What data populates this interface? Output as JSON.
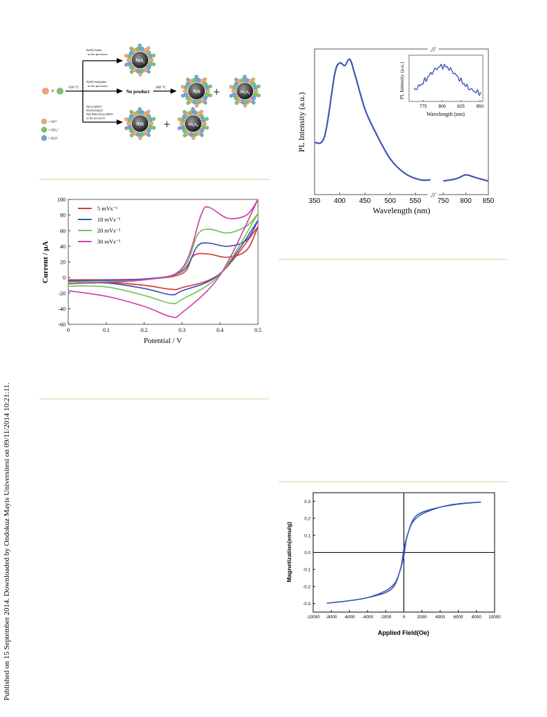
{
  "sidebar": {
    "text": "Published on 15 September 2014. Downloaded by Ondokuz Mayis Universitesi on 09/11/2014 10:21:11."
  },
  "scheme": {
    "reactant_plus": "+",
    "temperature_1": "150 °C",
    "temperature_2": "180 °C",
    "branch_top": [
      "Ni(II)-Salen",
      "as the precursor"
    ],
    "branch_middle": [
      "Ni(II)-Salophen",
      "as the precursor"
    ],
    "branch_bottom": [
      "NiCl2.6H2O",
      "NiSO4.6H2O",
      "Ni(CH3COO)2.4H2O",
      "as the precursor"
    ],
    "no_product": "No product",
    "product_nis2": "NiS₂",
    "product_nis": "NiS",
    "product_ni3s4": "Ni₃S₄",
    "plus": "+",
    "legend": [
      "= Ni²⁺",
      "= SO₄²⁻",
      "= H₂O"
    ],
    "colors": {
      "ni": "#f2a57a",
      "so4": "#7cc46a",
      "h2o": "#6fa6dc"
    }
  },
  "charts": {
    "pl": {
      "type": "line",
      "ylabel": "PL Intensity (a.u.)",
      "xlabel": "Wavelength (nm)",
      "xticks_left": [
        "350",
        "400",
        "450",
        "500",
        "550"
      ],
      "xticks_right": [
        "750",
        "800",
        "850"
      ],
      "axis_break": "//",
      "color": "#3a55b4",
      "inset": {
        "ylabel": "PL Intensity (a.u.)",
        "xlabel": "Wavelength (nm)",
        "xticks": [
          "775",
          "800",
          "825",
          "850"
        ]
      }
    },
    "cv": {
      "type": "line",
      "xlabel": "Potential / V",
      "ylabel": "Current / μA",
      "xticks": [
        "0",
        "0.1",
        "0.2",
        "0.3",
        "0.4",
        "0.5"
      ],
      "yticks": [
        "100",
        "80",
        "60",
        "40",
        "20",
        "0",
        "-20",
        "-40",
        "-60"
      ],
      "legend": [
        {
          "label": "5 mVs⁻¹",
          "color": "#d93a3a"
        },
        {
          "label": "10 mVs⁻¹",
          "color": "#3a55b4"
        },
        {
          "label": "20 mVs⁻¹",
          "color": "#73c455"
        },
        {
          "label": "30 mVs⁻¹",
          "color": "#cc44a8"
        }
      ]
    },
    "mag": {
      "type": "line",
      "xlabel": "Applied Field(Oe)",
      "ylabel": "Magnetization(emu/g)",
      "xticks": [
        "-10000",
        "-8000",
        "-6000",
        "-4000",
        "-2000",
        "0",
        "2000",
        "4000",
        "6000",
        "8000",
        "10000"
      ],
      "yticks": [
        "0.3",
        "0.2",
        "0.1",
        "0.0",
        "-0.1",
        "-0.2",
        "-0.3"
      ],
      "color": "#3a55b4"
    }
  },
  "chart_data": [
    {
      "type": "line",
      "xlabel": "Wavelength (nm)",
      "ylabel": "PL Intensity (a.u.)",
      "x": [
        350,
        370,
        390,
        400,
        410,
        420,
        430,
        450,
        470,
        500,
        530,
        560,
        580,
        750,
        780,
        800,
        820,
        850
      ],
      "y": [
        0.33,
        0.38,
        0.88,
        0.97,
        0.95,
        1.0,
        0.88,
        0.6,
        0.42,
        0.2,
        0.08,
        0.03,
        0.03,
        0.02,
        0.04,
        0.07,
        0.05,
        0.02
      ],
      "xlim": [
        350,
        850
      ]
    },
    {
      "type": "line",
      "xlabel": "Potential / V",
      "ylabel": "Current / μA",
      "xlim": [
        0,
        0.5
      ],
      "ylim": [
        -60,
        100
      ],
      "series": [
        {
          "name": "5 mVs⁻¹",
          "forward": [
            [
              0,
              -3
            ],
            [
              0.2,
              -2
            ],
            [
              0.3,
              5
            ],
            [
              0.33,
              28
            ],
            [
              0.37,
              30
            ],
            [
              0.42,
              26
            ],
            [
              0.47,
              35
            ],
            [
              0.5,
              65
            ]
          ],
          "reverse": [
            [
              0.5,
              65
            ],
            [
              0.4,
              5
            ],
            [
              0.3,
              -13
            ],
            [
              0.27,
              -15
            ],
            [
              0.2,
              -10
            ],
            [
              0.1,
              -6
            ],
            [
              0,
              -5
            ]
          ]
        },
        {
          "name": "10 mVs⁻¹",
          "forward": [
            [
              0,
              -4
            ],
            [
              0.2,
              -2
            ],
            [
              0.3,
              8
            ],
            [
              0.34,
              40
            ],
            [
              0.37,
              44
            ],
            [
              0.42,
              40
            ],
            [
              0.47,
              48
            ],
            [
              0.5,
              73
            ]
          ],
          "reverse": [
            [
              0.5,
              73
            ],
            [
              0.4,
              5
            ],
            [
              0.3,
              -17
            ],
            [
              0.27,
              -22
            ],
            [
              0.2,
              -14
            ],
            [
              0.1,
              -7
            ],
            [
              0,
              -8
            ]
          ]
        },
        {
          "name": "20 mVs⁻¹",
          "forward": [
            [
              0,
              -6
            ],
            [
              0.2,
              -3
            ],
            [
              0.3,
              10
            ],
            [
              0.34,
              54
            ],
            [
              0.37,
              62
            ],
            [
              0.42,
              57
            ],
            [
              0.47,
              66
            ],
            [
              0.5,
              82
            ]
          ],
          "reverse": [
            [
              0.5,
              82
            ],
            [
              0.4,
              4
            ],
            [
              0.3,
              -28
            ],
            [
              0.27,
              -33
            ],
            [
              0.2,
              -23
            ],
            [
              0.1,
              -12
            ],
            [
              0,
              -11
            ]
          ]
        },
        {
          "name": "30 mVs⁻¹",
          "forward": [
            [
              0,
              -8
            ],
            [
              0.2,
              -3
            ],
            [
              0.3,
              12
            ],
            [
              0.35,
              80
            ],
            [
              0.37,
              90
            ],
            [
              0.42,
              76
            ],
            [
              0.47,
              80
            ],
            [
              0.5,
              100
            ]
          ],
          "reverse": [
            [
              0.5,
              100
            ],
            [
              0.4,
              3
            ],
            [
              0.3,
              -45
            ],
            [
              0.27,
              -50
            ],
            [
              0.2,
              -37
            ],
            [
              0.1,
              -24
            ],
            [
              0,
              -17
            ]
          ]
        }
      ]
    },
    {
      "type": "line",
      "xlabel": "Applied Field(Oe)",
      "ylabel": "Magnetization(emu/g)",
      "xlim": [
        -10000,
        10000
      ],
      "ylim": [
        -0.35,
        0.35
      ],
      "upper_branch": [
        [
          8500,
          0.295
        ],
        [
          6000,
          0.285
        ],
        [
          4000,
          0.265
        ],
        [
          2000,
          0.225
        ],
        [
          1000,
          0.18
        ],
        [
          500,
          0.12
        ],
        [
          0,
          0.02
        ],
        [
          -300,
          -0.08
        ],
        [
          -1000,
          -0.19
        ],
        [
          -2000,
          -0.235
        ],
        [
          -4000,
          -0.265
        ],
        [
          -6000,
          -0.283
        ],
        [
          -8500,
          -0.298
        ]
      ],
      "lower_branch": [
        [
          -8500,
          -0.298
        ],
        [
          -6000,
          -0.283
        ],
        [
          -4000,
          -0.265
        ],
        [
          -2000,
          -0.225
        ],
        [
          -1000,
          -0.18
        ],
        [
          -500,
          -0.12
        ],
        [
          0,
          -0.02
        ],
        [
          300,
          0.08
        ],
        [
          1000,
          0.19
        ],
        [
          2000,
          0.235
        ],
        [
          4000,
          0.265
        ],
        [
          6000,
          0.283
        ],
        [
          8500,
          0.295
        ]
      ]
    }
  ]
}
